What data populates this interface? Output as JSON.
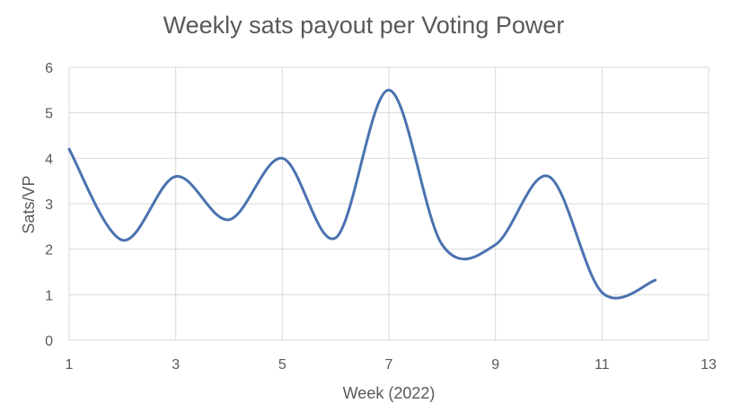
{
  "chart_data": {
    "type": "line",
    "title": "Weekly sats payout per Voting Power",
    "xlabel": "Week (2022)",
    "ylabel": "Sats/VP",
    "xlim": [
      1,
      13
    ],
    "ylim": [
      0,
      6
    ],
    "xticks": [
      1,
      3,
      5,
      7,
      9,
      11,
      13
    ],
    "yticks": [
      0,
      1,
      2,
      3,
      4,
      5,
      6
    ],
    "grid": true,
    "smooth": true,
    "series": [
      {
        "color": "#4a72b0",
        "x": [
          1,
          2,
          3,
          4,
          5,
          6,
          7,
          8,
          9,
          10,
          11,
          12
        ],
        "y": [
          4.2,
          2.2,
          3.6,
          2.65,
          4.0,
          2.25,
          5.5,
          2.1,
          2.1,
          3.6,
          1.05,
          1.32
        ]
      }
    ]
  }
}
